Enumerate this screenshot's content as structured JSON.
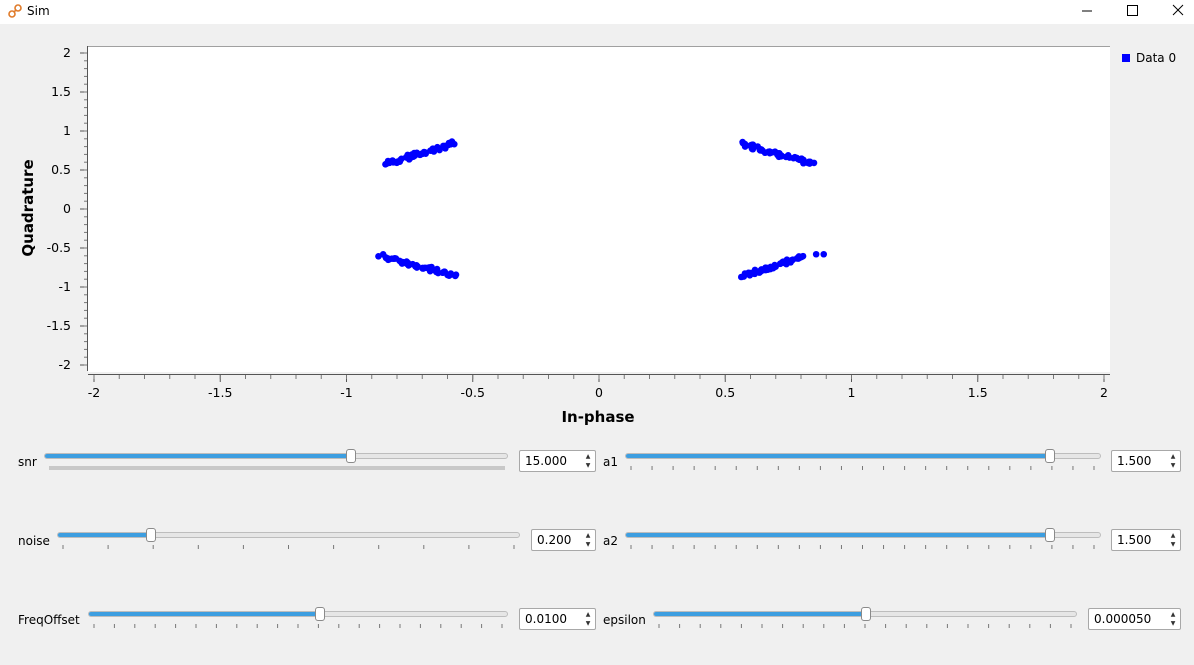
{
  "window": {
    "title": "Sim"
  },
  "legend": {
    "label": "Data 0",
    "color": "#0000ff"
  },
  "chart_data": {
    "type": "scatter",
    "xlabel": "In-phase",
    "ylabel": "Quadrature",
    "xlim": [
      -2,
      2
    ],
    "ylim": [
      -2,
      2
    ],
    "xticks": [
      "-2",
      "-1.5",
      "-1",
      "-0.5",
      "0",
      "0.5",
      "1",
      "1.5",
      "2"
    ],
    "yticks": [
      "2",
      "1.5",
      "1",
      "0.5",
      "0",
      "-0.5",
      "-1",
      "-1.5",
      "-2"
    ],
    "legend": "top-right",
    "grid": false,
    "series": [
      {
        "name": "Data 0",
        "color": "#0000ff",
        "clusters": [
          {
            "from": [
              -0.84,
              0.58
            ],
            "to": [
              -0.57,
              0.84
            ],
            "count": 48
          },
          {
            "from": [
              0.57,
              0.84
            ],
            "to": [
              0.84,
              0.58
            ],
            "count": 48
          },
          {
            "from": [
              -0.86,
              -0.6
            ],
            "to": [
              -0.57,
              -0.86
            ],
            "count": 48
          },
          {
            "from": [
              0.57,
              -0.86
            ],
            "to": [
              0.82,
              -0.6
            ],
            "count": 44
          }
        ],
        "points": [
          [
            0.86,
            -0.58
          ],
          [
            0.89,
            -0.58
          ]
        ]
      }
    ]
  },
  "controls": {
    "snr": {
      "label": "snr",
      "value": "15.000",
      "fraction": 0.66
    },
    "a1": {
      "label": "a1",
      "value": "1.500",
      "fraction": 0.89
    },
    "noise": {
      "label": "noise",
      "value": "0.200",
      "fraction": 0.2
    },
    "a2": {
      "label": "a2",
      "value": "1.500",
      "fraction": 0.89
    },
    "freqoffset": {
      "label": "FreqOffset",
      "value": "0.0100",
      "fraction": 0.55
    },
    "epsilon": {
      "label": "epsilon",
      "value": "0.000050",
      "fraction": 0.5
    }
  }
}
